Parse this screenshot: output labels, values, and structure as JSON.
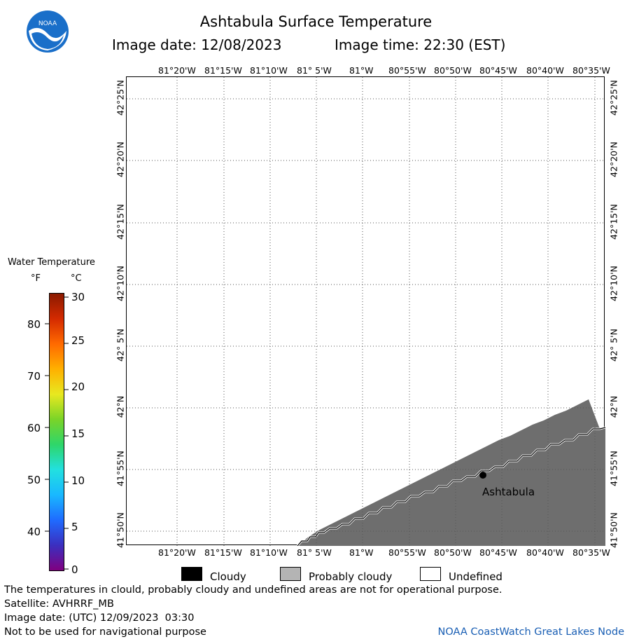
{
  "header": {
    "title": "Ashtabula Surface Temperature",
    "image_date": "Image date: 12/08/2023",
    "image_time": "Image time: 22:30 (EST)"
  },
  "logo": {
    "text": "NOAA"
  },
  "map": {
    "lon_labels": [
      "81°20'W",
      "81°15'W",
      "81°10'W",
      "81° 5'W",
      "81°W",
      "80°55'W",
      "80°50'W",
      "80°45'W",
      "80°40'W",
      "80°35'W"
    ],
    "lat_labels": [
      "42°25'N",
      "42°20'N",
      "42°15'N",
      "42°10'N",
      "42° 5'N",
      "42°N",
      "41°55'N",
      "41°50'N"
    ],
    "city": "Ashtabula",
    "colors": {
      "land": "#6e6e6e",
      "water": "#ffffff",
      "grid": "#555555"
    }
  },
  "color_scale": {
    "title": "Water Temperature",
    "unit_f": "°F",
    "unit_c": "°C",
    "f_ticks": [
      "80",
      "70",
      "60",
      "50",
      "40"
    ],
    "c_ticks": [
      "30",
      "25",
      "20",
      "15",
      "10",
      "5",
      "0"
    ],
    "gradient": [
      "#800080",
      "#3b2fbf",
      "#1f6bff",
      "#19b8ff",
      "#22e0e0",
      "#2ed66a",
      "#7ad428",
      "#e8e820",
      "#ffb000",
      "#ff6a00",
      "#d42a00",
      "#8b1a00"
    ]
  },
  "legend": {
    "cloudy": "Cloudy",
    "probably_cloudy": "Probably cloudy",
    "undefined": "Undefined"
  },
  "footer": {
    "note": "The temperatures in clould, probably cloudy and undefined areas are not for operational purpose.",
    "satellite": "Satellite: AVHRRF_MB",
    "utc_date": "Image date: (UTC) 12/09/2023  03:30",
    "nav": "Not to be used for navigational purpose",
    "credit": "NOAA CoastWatch Great Lakes Node"
  }
}
